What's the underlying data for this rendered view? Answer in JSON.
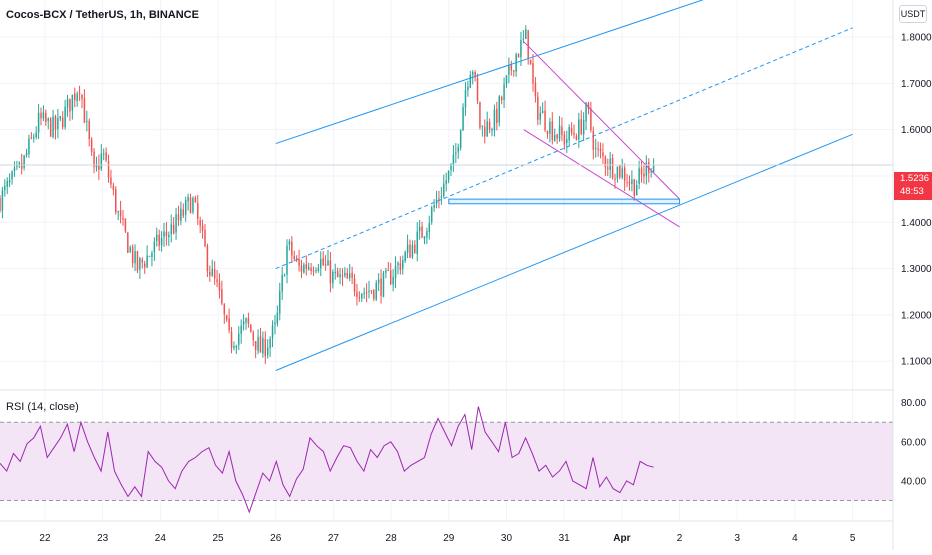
{
  "header": {
    "title": "Cocos-BCX / TetherUS, 1h, BINANCE",
    "currency": "USDT"
  },
  "price_tag": {
    "price": "1.5236",
    "countdown": "48:53",
    "color": "#f23645"
  },
  "rsi_panel": {
    "title": "RSI (14, close)"
  },
  "colors": {
    "up": "#26a69a",
    "down": "#ef5350",
    "channel": "#2196f3",
    "wedge": "#cc44cc",
    "rsi_line": "#9c27b0",
    "rsi_band": "#f3e5f5"
  },
  "chart_data": [
    {
      "type": "candlestick",
      "ylim": [
        1.04,
        1.88
      ],
      "y_ticks": [
        "1.1000",
        "1.2000",
        "1.3000",
        "1.4000",
        "1.5000",
        "1.6000",
        "1.7000",
        "1.8000"
      ],
      "x_ticks": [
        "22",
        "23",
        "24",
        "25",
        "26",
        "27",
        "28",
        "29",
        "30",
        "31",
        "Apr",
        "2",
        "3",
        "4",
        "5"
      ],
      "x_range_days": [
        21.22,
        36.7
      ],
      "open": 1.45,
      "segments": [
        [
          21.22,
          1.45
        ],
        [
          21.6,
          1.52
        ],
        [
          21.9,
          1.62
        ],
        [
          22.2,
          1.6
        ],
        [
          22.6,
          1.7
        ],
        [
          22.85,
          1.5
        ],
        [
          23.0,
          1.55
        ],
        [
          23.3,
          1.4
        ],
        [
          23.6,
          1.3
        ],
        [
          24.0,
          1.36
        ],
        [
          24.3,
          1.4
        ],
        [
          24.55,
          1.45
        ],
        [
          24.85,
          1.3
        ],
        [
          25.0,
          1.25
        ],
        [
          25.2,
          1.14
        ],
        [
          25.5,
          1.18
        ],
        [
          25.75,
          1.12
        ],
        [
          26.0,
          1.17
        ],
        [
          26.2,
          1.35
        ],
        [
          26.4,
          1.3
        ],
        [
          26.75,
          1.32
        ],
        [
          27.0,
          1.28
        ],
        [
          27.3,
          1.27
        ],
        [
          27.55,
          1.25
        ],
        [
          27.9,
          1.27
        ],
        [
          28.2,
          1.32
        ],
        [
          28.55,
          1.38
        ],
        [
          28.8,
          1.45
        ],
        [
          29.1,
          1.53
        ],
        [
          29.3,
          1.7
        ],
        [
          29.4,
          1.75
        ],
        [
          29.55,
          1.6
        ],
        [
          29.8,
          1.62
        ],
        [
          30.15,
          1.76
        ],
        [
          30.35,
          1.8
        ],
        [
          30.5,
          1.65
        ],
        [
          30.8,
          1.6
        ],
        [
          31.0,
          1.58
        ],
        [
          31.25,
          1.6
        ],
        [
          31.4,
          1.64
        ],
        [
          31.55,
          1.55
        ],
        [
          31.85,
          1.52
        ],
        [
          32.0,
          1.51
        ],
        [
          32.2,
          1.48
        ],
        [
          32.35,
          1.5
        ],
        [
          32.48,
          1.53
        ],
        [
          32.55,
          1.5236
        ]
      ],
      "channel_upper": [
        [
          26.0,
          1.57
        ],
        [
          34.35,
          1.92
        ]
      ],
      "channel_mid": [
        [
          26.0,
          1.3
        ],
        [
          36.0,
          1.82
        ]
      ],
      "channel_lower": [
        [
          26.0,
          1.08
        ],
        [
          36.0,
          1.59
        ]
      ],
      "wedge_upper": [
        [
          30.3,
          1.79
        ],
        [
          33.0,
          1.45
        ]
      ],
      "wedge_lower": [
        [
          30.3,
          1.6
        ],
        [
          33.0,
          1.39
        ]
      ],
      "support_box": [
        [
          29.0,
          1.45
        ],
        [
          33.0,
          1.44
        ]
      ],
      "last_price": 1.5236
    },
    {
      "type": "line",
      "title": "RSI (14, close)",
      "ylim": [
        20,
        86
      ],
      "y_ticks": [
        "40.00",
        "60.00",
        "80.00"
      ],
      "band": [
        30,
        70
      ],
      "x_range_days": [
        21.22,
        32.55
      ],
      "values": [
        49,
        45,
        54,
        50,
        59,
        62,
        68,
        52,
        57,
        62,
        69,
        55,
        70,
        60,
        52,
        45,
        65,
        45,
        38,
        32,
        37,
        32,
        55,
        50,
        47,
        40,
        36,
        45,
        50,
        52,
        55,
        57,
        48,
        44,
        55,
        40,
        33,
        24,
        34,
        44,
        40,
        50,
        38,
        32,
        41,
        46,
        62,
        58,
        55,
        45,
        52,
        58,
        57,
        50,
        45,
        56,
        52,
        58,
        60,
        55,
        45,
        48,
        50,
        52,
        64,
        72,
        65,
        58,
        68,
        74,
        56,
        78,
        65,
        60,
        55,
        70,
        52,
        54,
        62,
        54,
        45,
        48,
        42,
        45,
        50,
        40,
        38,
        36,
        52,
        37,
        42,
        36,
        34,
        40,
        38,
        50,
        48,
        47
      ]
    }
  ]
}
